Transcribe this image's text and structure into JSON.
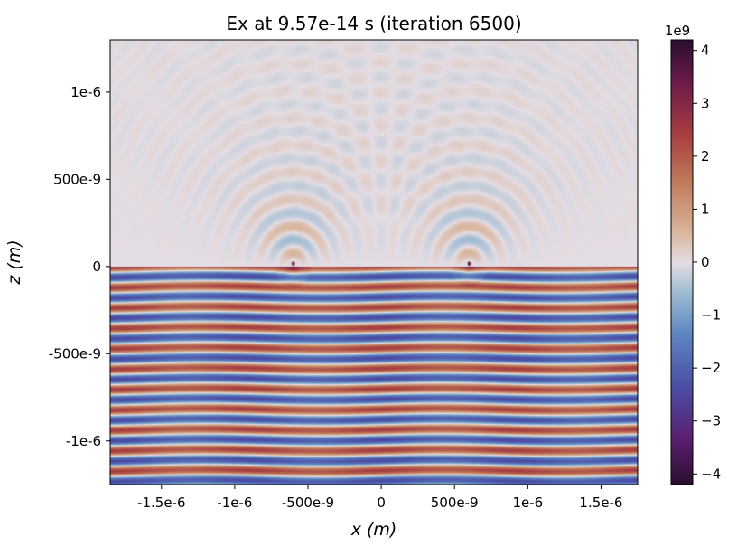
{
  "chart_data": {
    "type": "heatmap",
    "title": "Ex at 9.57e-14 s   (iteration 6500)",
    "xlabel": "x (m)",
    "ylabel": "z (m)",
    "xlim": [
      -1.85e-06,
      1.75e-06
    ],
    "ylim": [
      -1.25e-06,
      1.3e-06
    ],
    "x_ticks": [
      {
        "value": -1.5e-06,
        "label": "-1.5e-6"
      },
      {
        "value": -1e-06,
        "label": "-1e-6"
      },
      {
        "value": -5e-07,
        "label": "-500e-9"
      },
      {
        "value": 0,
        "label": "0"
      },
      {
        "value": 5e-07,
        "label": "500e-9"
      },
      {
        "value": 1e-06,
        "label": "1e-6"
      },
      {
        "value": 1.5e-06,
        "label": "1.5e-6"
      }
    ],
    "y_ticks": [
      {
        "value": 1e-06,
        "label": "1e-6"
      },
      {
        "value": 5e-07,
        "label": "500e-9"
      },
      {
        "value": 0,
        "label": "0"
      },
      {
        "value": -5e-07,
        "label": "-500e-9"
      },
      {
        "value": -1e-06,
        "label": "-1e-6"
      }
    ],
    "colorbar": {
      "colormap": "twilight_shifted",
      "min": -4.2,
      "max": 4.2,
      "offset_label": "1e9",
      "ticks": [
        {
          "value": 4,
          "label": "4"
        },
        {
          "value": 3,
          "label": "3"
        },
        {
          "value": 2,
          "label": "2"
        },
        {
          "value": 1,
          "label": "1"
        },
        {
          "value": 0,
          "label": "0"
        },
        {
          "value": -1,
          "label": "−1"
        },
        {
          "value": -2,
          "label": "−2"
        },
        {
          "value": -3,
          "label": "−3"
        },
        {
          "value": -4,
          "label": "−4"
        }
      ]
    },
    "field": {
      "interface_z": 0,
      "sources_x": [
        -6e-07,
        6e-07
      ],
      "lower_region": "horizontal standing-wave stripes with amplitude about ±2.5e9",
      "upper_region": "weak circular ripples radiating from the two sources, amplitude about ±0.5e9"
    }
  }
}
